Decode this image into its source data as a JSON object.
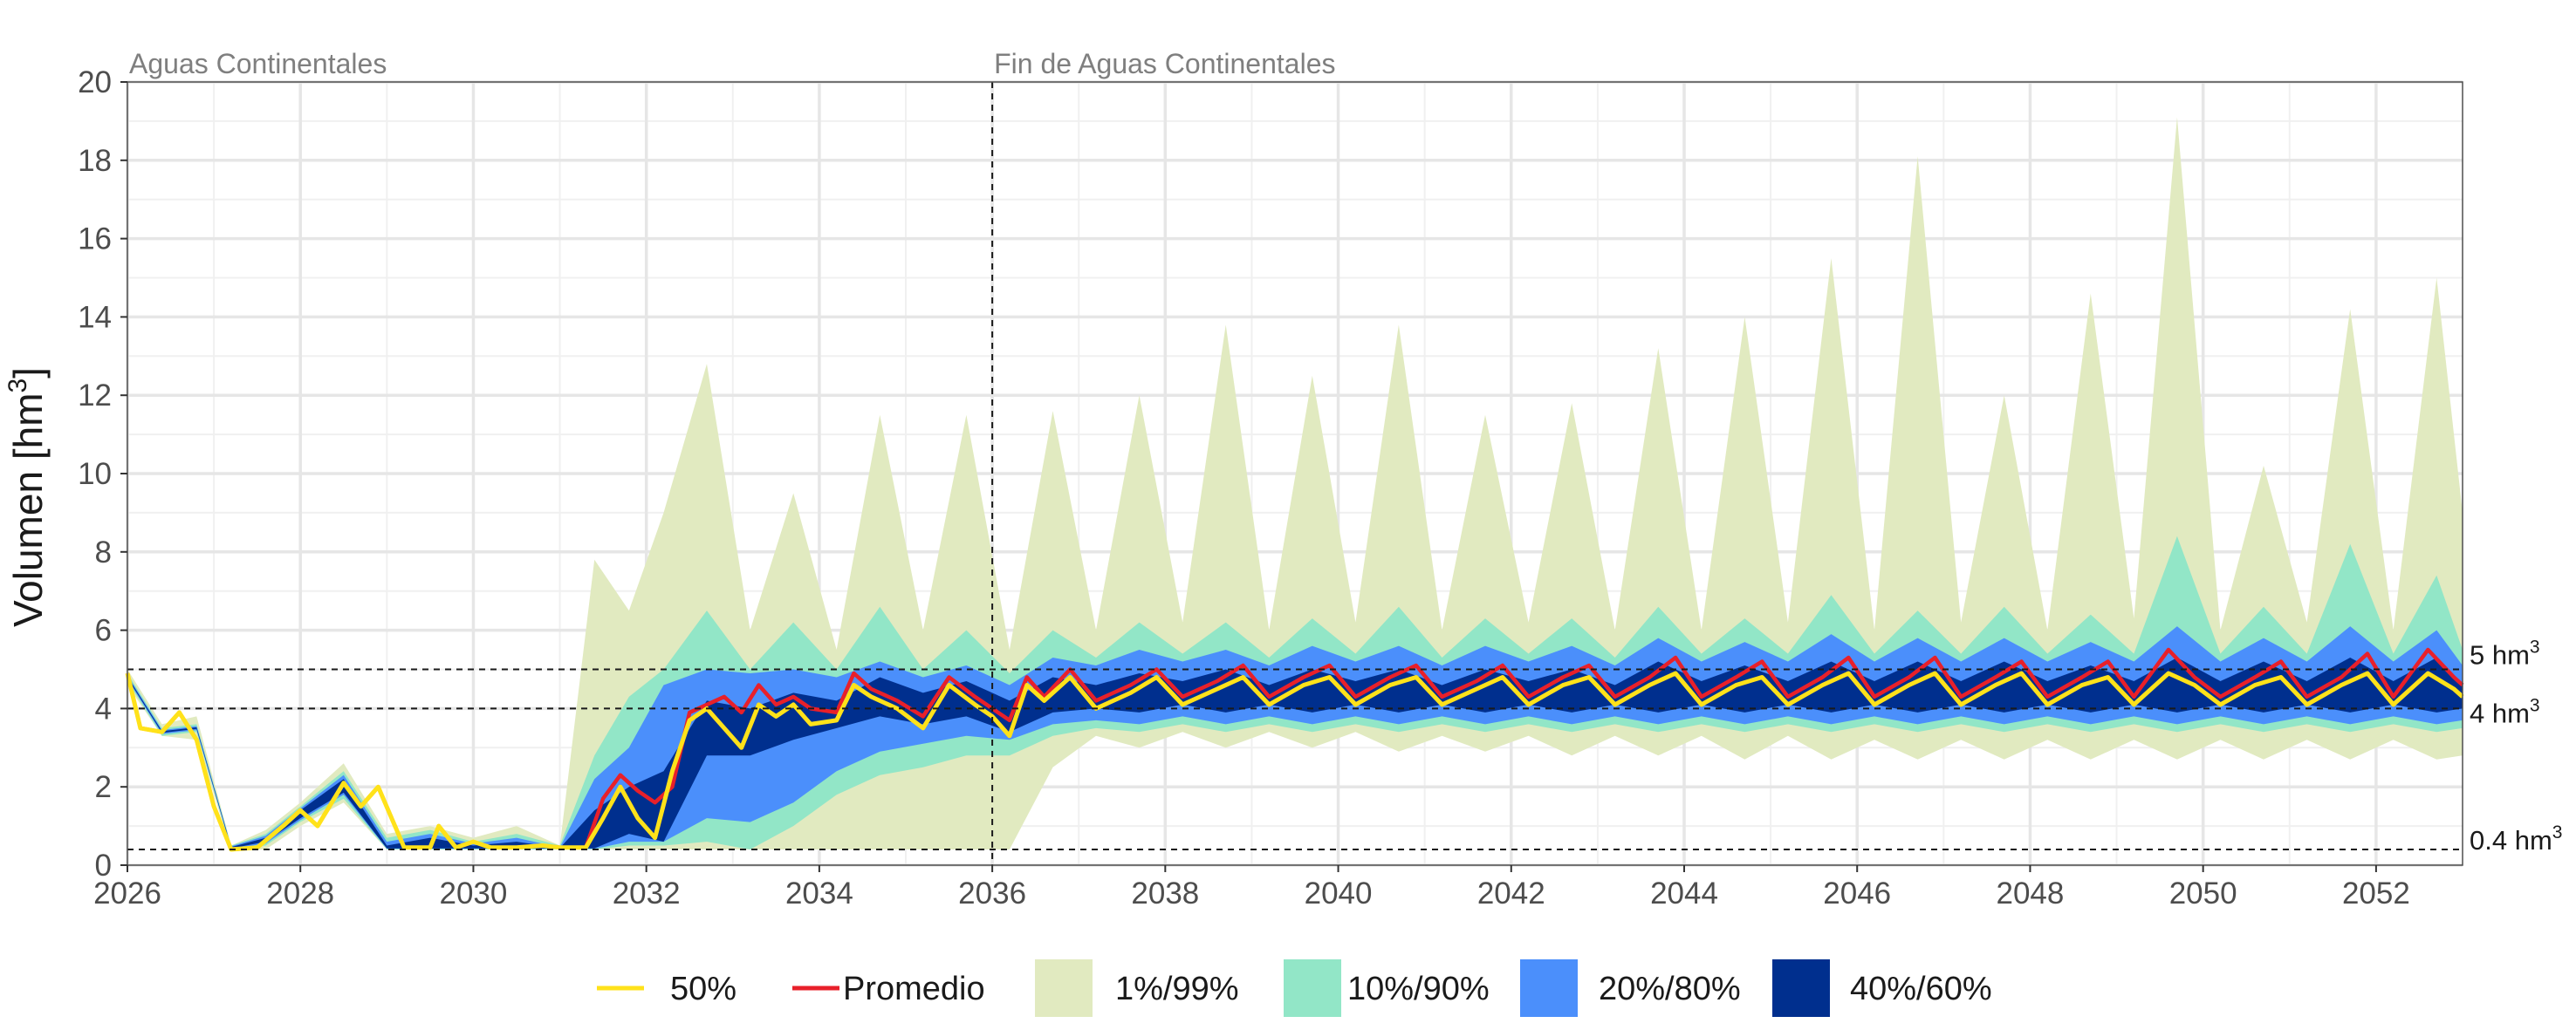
{
  "chart_data": {
    "type": "area",
    "ylabel": "Volumen [hm",
    "ylabel_sup": "3",
    "ylabel_end": "]",
    "xlim": [
      2026,
      2053
    ],
    "ylim": [
      0,
      20
    ],
    "x_ticks": [
      2026,
      2028,
      2030,
      2032,
      2034,
      2036,
      2038,
      2040,
      2042,
      2044,
      2046,
      2048,
      2050,
      2052
    ],
    "y_ticks": [
      0,
      2,
      4,
      6,
      8,
      10,
      12,
      14,
      16,
      18,
      20
    ],
    "grid": true,
    "legend_position": "bottom",
    "annotations": [
      {
        "x": 2026,
        "text": "Aguas Continentales"
      },
      {
        "x": 2036,
        "text": "Fin de Aguas Continentales"
      }
    ],
    "vlines": [
      2036
    ],
    "hlines": [
      {
        "y": 5,
        "label": "5 hm",
        "sup": "3"
      },
      {
        "y": 4,
        "label": "4 hm",
        "sup": "3"
      },
      {
        "y": 0.4,
        "label": "0.4 hm",
        "sup": "3"
      }
    ],
    "legend": [
      {
        "type": "line",
        "name": "50%",
        "color": "#ffe21a"
      },
      {
        "type": "line",
        "name": "Promedio",
        "color": "#e8202a"
      },
      {
        "type": "band",
        "name": "1%/99%",
        "color": "#e1eac0"
      },
      {
        "type": "band",
        "name": "10%/90%",
        "color": "#92e6c7"
      },
      {
        "type": "band",
        "name": "20%/80%",
        "color": "#4b8ffb"
      },
      {
        "type": "band",
        "name": "40%/60%",
        "color": "#002f8e"
      }
    ],
    "series": [
      {
        "name": "1%/99%",
        "kind": "band",
        "x": [
          2026.0,
          2026.4,
          2026.8,
          2027.2,
          2027.6,
          2028.0,
          2028.5,
          2029.0,
          2029.5,
          2030.0,
          2030.5,
          2031.0,
          2031.4,
          2031.8,
          2032.2,
          2032.7,
          2033.2,
          2033.7,
          2034.2,
          2034.7,
          2035.2,
          2035.7,
          2036.2,
          2036.7,
          2037.2,
          2037.7,
          2038.2,
          2038.7,
          2039.2,
          2039.7,
          2040.2,
          2040.7,
          2041.2,
          2041.7,
          2042.2,
          2042.7,
          2043.2,
          2043.7,
          2044.2,
          2044.7,
          2045.2,
          2045.7,
          2046.2,
          2046.7,
          2047.2,
          2047.7,
          2048.2,
          2048.7,
          2049.2,
          2049.7,
          2050.2,
          2050.7,
          2051.2,
          2051.7,
          2052.2,
          2052.7,
          2053.0
        ],
        "low": [
          4.6,
          3.3,
          3.2,
          0.4,
          0.4,
          1.0,
          1.6,
          0.4,
          0.4,
          0.4,
          0.4,
          0.4,
          0.4,
          0.4,
          0.4,
          0.4,
          0.4,
          0.4,
          0.4,
          0.4,
          0.4,
          0.4,
          0.4,
          2.5,
          3.3,
          3.0,
          3.4,
          3.0,
          3.4,
          3.0,
          3.4,
          2.9,
          3.3,
          2.9,
          3.3,
          2.8,
          3.3,
          2.8,
          3.3,
          2.7,
          3.3,
          2.7,
          3.2,
          2.7,
          3.2,
          2.7,
          3.2,
          2.7,
          3.2,
          2.7,
          3.2,
          2.7,
          3.2,
          2.7,
          3.2,
          2.7,
          2.8
        ],
        "high": [
          5.0,
          3.6,
          3.8,
          0.5,
          0.9,
          1.6,
          2.6,
          0.8,
          1.0,
          0.7,
          1.0,
          0.5,
          7.8,
          6.5,
          9.0,
          12.8,
          6.0,
          9.5,
          5.5,
          11.5,
          6.0,
          11.5,
          5.5,
          11.6,
          6.0,
          12.0,
          6.2,
          13.8,
          6.0,
          12.5,
          6.2,
          13.8,
          6.0,
          11.5,
          6.2,
          11.8,
          6.0,
          13.2,
          6.0,
          14.0,
          6.2,
          15.5,
          6.0,
          18.1,
          6.2,
          12.0,
          6.0,
          14.6,
          6.3,
          19.1,
          6.0,
          10.2,
          6.2,
          14.2,
          6.0,
          15.0,
          9.0
        ]
      },
      {
        "name": "10%/90%",
        "kind": "band",
        "x": [
          2026.0,
          2026.4,
          2026.8,
          2027.2,
          2027.6,
          2028.0,
          2028.5,
          2029.0,
          2029.5,
          2030.0,
          2030.5,
          2031.0,
          2031.4,
          2031.8,
          2032.2,
          2032.7,
          2033.2,
          2033.7,
          2034.2,
          2034.7,
          2035.2,
          2035.7,
          2036.2,
          2036.7,
          2037.2,
          2037.7,
          2038.2,
          2038.7,
          2039.2,
          2039.7,
          2040.2,
          2040.7,
          2041.2,
          2041.7,
          2042.2,
          2042.7,
          2043.2,
          2043.7,
          2044.2,
          2044.7,
          2045.2,
          2045.7,
          2046.2,
          2046.7,
          2047.2,
          2047.7,
          2048.2,
          2048.7,
          2049.2,
          2049.7,
          2050.2,
          2050.7,
          2051.2,
          2051.7,
          2052.2,
          2052.7,
          2053.0
        ],
        "low": [
          4.7,
          3.3,
          3.4,
          0.4,
          0.5,
          1.1,
          1.7,
          0.4,
          0.4,
          0.4,
          0.4,
          0.4,
          0.4,
          0.5,
          0.5,
          0.6,
          0.4,
          1.0,
          1.8,
          2.3,
          2.5,
          2.8,
          2.8,
          3.3,
          3.5,
          3.4,
          3.6,
          3.4,
          3.6,
          3.4,
          3.6,
          3.4,
          3.6,
          3.4,
          3.6,
          3.4,
          3.6,
          3.4,
          3.6,
          3.4,
          3.6,
          3.4,
          3.6,
          3.4,
          3.6,
          3.4,
          3.6,
          3.4,
          3.6,
          3.4,
          3.6,
          3.4,
          3.6,
          3.4,
          3.6,
          3.4,
          3.5
        ],
        "high": [
          4.9,
          3.5,
          3.6,
          0.5,
          0.8,
          1.5,
          2.4,
          0.7,
          0.9,
          0.6,
          0.8,
          0.5,
          2.8,
          4.3,
          5.0,
          6.5,
          5.0,
          6.2,
          5.0,
          6.6,
          5.0,
          6.0,
          4.9,
          6.0,
          5.3,
          6.2,
          5.4,
          6.2,
          5.3,
          6.3,
          5.4,
          6.6,
          5.3,
          6.3,
          5.4,
          6.3,
          5.3,
          6.6,
          5.4,
          6.3,
          5.4,
          6.9,
          5.4,
          6.5,
          5.4,
          6.6,
          5.4,
          6.4,
          5.4,
          8.4,
          5.4,
          6.6,
          5.4,
          8.2,
          5.4,
          7.4,
          5.5
        ]
      },
      {
        "name": "20%/80%",
        "kind": "band",
        "x": [
          2026.0,
          2026.4,
          2026.8,
          2027.2,
          2027.6,
          2028.0,
          2028.5,
          2029.0,
          2029.5,
          2030.0,
          2030.5,
          2031.0,
          2031.4,
          2031.8,
          2032.2,
          2032.7,
          2033.2,
          2033.7,
          2034.2,
          2034.7,
          2035.2,
          2035.7,
          2036.2,
          2036.7,
          2037.2,
          2037.7,
          2038.2,
          2038.7,
          2039.2,
          2039.7,
          2040.2,
          2040.7,
          2041.2,
          2041.7,
          2042.2,
          2042.7,
          2043.2,
          2043.7,
          2044.2,
          2044.7,
          2045.2,
          2045.7,
          2046.2,
          2046.7,
          2047.2,
          2047.7,
          2048.2,
          2048.7,
          2049.2,
          2049.7,
          2050.2,
          2050.7,
          2051.2,
          2051.7,
          2052.2,
          2052.7,
          2053.0
        ],
        "low": [
          4.75,
          3.35,
          3.45,
          0.42,
          0.55,
          1.15,
          1.8,
          0.42,
          0.42,
          0.42,
          0.42,
          0.42,
          0.42,
          0.6,
          0.6,
          1.2,
          1.1,
          1.6,
          2.4,
          2.9,
          3.1,
          3.3,
          3.2,
          3.6,
          3.7,
          3.6,
          3.8,
          3.6,
          3.8,
          3.6,
          3.8,
          3.6,
          3.8,
          3.6,
          3.8,
          3.6,
          3.8,
          3.6,
          3.8,
          3.6,
          3.8,
          3.6,
          3.8,
          3.6,
          3.8,
          3.6,
          3.8,
          3.6,
          3.8,
          3.6,
          3.8,
          3.6,
          3.8,
          3.6,
          3.8,
          3.6,
          3.7
        ],
        "high": [
          4.85,
          3.45,
          3.55,
          0.48,
          0.75,
          1.45,
          2.3,
          0.6,
          0.8,
          0.55,
          0.7,
          0.45,
          2.2,
          3.0,
          4.6,
          5.0,
          4.9,
          5.0,
          4.8,
          5.2,
          4.8,
          5.1,
          4.6,
          5.3,
          5.1,
          5.5,
          5.2,
          5.5,
          5.1,
          5.6,
          5.2,
          5.6,
          5.1,
          5.6,
          5.2,
          5.6,
          5.1,
          5.8,
          5.2,
          5.7,
          5.2,
          5.9,
          5.2,
          5.8,
          5.2,
          5.8,
          5.2,
          5.7,
          5.2,
          6.1,
          5.2,
          5.8,
          5.2,
          6.1,
          5.2,
          6.0,
          5.1
        ]
      },
      {
        "name": "40%/60%",
        "kind": "band",
        "x": [
          2026.0,
          2026.4,
          2026.8,
          2027.2,
          2027.6,
          2028.0,
          2028.5,
          2029.0,
          2029.5,
          2030.0,
          2030.5,
          2031.0,
          2031.4,
          2031.8,
          2032.2,
          2032.7,
          2033.2,
          2033.7,
          2034.2,
          2034.7,
          2035.2,
          2035.7,
          2036.2,
          2036.7,
          2037.2,
          2037.7,
          2038.2,
          2038.7,
          2039.2,
          2039.7,
          2040.2,
          2040.7,
          2041.2,
          2041.7,
          2042.2,
          2042.7,
          2043.2,
          2043.7,
          2044.2,
          2044.7,
          2045.2,
          2045.7,
          2046.2,
          2046.7,
          2047.2,
          2047.7,
          2048.2,
          2048.7,
          2049.2,
          2049.7,
          2050.2,
          2050.7,
          2051.2,
          2051.7,
          2052.2,
          2052.7,
          2053.0
        ],
        "low": [
          4.78,
          3.38,
          3.48,
          0.43,
          0.6,
          1.2,
          1.85,
          0.43,
          0.43,
          0.43,
          0.43,
          0.43,
          0.43,
          0.8,
          0.6,
          2.8,
          2.8,
          3.2,
          3.5,
          3.8,
          3.6,
          3.8,
          3.4,
          3.9,
          4.0,
          3.9,
          4.1,
          3.9,
          4.1,
          3.9,
          4.1,
          3.9,
          4.1,
          3.9,
          4.1,
          3.9,
          4.1,
          3.9,
          4.1,
          3.9,
          4.1,
          3.9,
          4.1,
          3.9,
          4.1,
          3.9,
          4.1,
          3.9,
          4.1,
          3.9,
          4.1,
          3.9,
          4.1,
          3.9,
          4.1,
          3.9,
          4.0
        ],
        "high": [
          4.82,
          3.42,
          3.52,
          0.46,
          0.7,
          1.4,
          2.2,
          0.5,
          0.7,
          0.5,
          0.6,
          0.44,
          1.4,
          2.0,
          2.4,
          4.2,
          4.0,
          4.4,
          4.2,
          4.8,
          4.4,
          4.7,
          4.2,
          4.8,
          4.6,
          4.9,
          4.7,
          5.0,
          4.6,
          5.0,
          4.7,
          5.0,
          4.6,
          5.0,
          4.7,
          5.0,
          4.6,
          5.2,
          4.7,
          5.1,
          4.7,
          5.2,
          4.7,
          5.2,
          4.7,
          5.2,
          4.7,
          5.1,
          4.7,
          5.3,
          4.7,
          5.2,
          4.7,
          5.3,
          4.7,
          5.3,
          4.6
        ]
      },
      {
        "name": "Promedio",
        "kind": "line",
        "x": [
          2026.0,
          2026.15,
          2026.4,
          2026.6,
          2026.8,
          2027.0,
          2027.2,
          2027.5,
          2027.8,
          2028.0,
          2028.2,
          2028.5,
          2028.7,
          2028.9,
          2029.2,
          2029.5,
          2029.6,
          2029.8,
          2030.0,
          2030.2,
          2030.5,
          2030.8,
          2031.0,
          2031.3,
          2031.5,
          2031.7,
          2031.9,
          2032.1,
          2032.3,
          2032.5,
          2032.7,
          2032.9,
          2033.1,
          2033.3,
          2033.5,
          2033.7,
          2033.9,
          2034.2,
          2034.4,
          2034.6,
          2034.9,
          2035.2,
          2035.5,
          2035.8,
          2036.0,
          2036.2,
          2036.4,
          2036.6,
          2036.9,
          2037.2,
          2037.6,
          2037.9,
          2038.2,
          2038.6,
          2038.9,
          2039.2,
          2039.6,
          2039.9,
          2040.2,
          2040.6,
          2040.9,
          2041.2,
          2041.6,
          2041.9,
          2042.2,
          2042.6,
          2042.9,
          2043.2,
          2043.6,
          2043.9,
          2044.2,
          2044.6,
          2044.9,
          2045.2,
          2045.6,
          2045.9,
          2046.2,
          2046.6,
          2046.9,
          2047.2,
          2047.6,
          2047.9,
          2048.2,
          2048.6,
          2048.9,
          2049.2,
          2049.6,
          2049.9,
          2050.2,
          2050.6,
          2050.9,
          2051.2,
          2051.6,
          2051.9,
          2052.2,
          2052.6,
          2052.9,
          2053.0
        ],
        "y": [
          4.9,
          3.5,
          3.4,
          3.9,
          3.2,
          1.5,
          0.4,
          0.45,
          1.0,
          1.4,
          1.0,
          2.1,
          1.5,
          2.0,
          0.45,
          0.45,
          1.0,
          0.45,
          0.6,
          0.45,
          0.45,
          0.5,
          0.45,
          0.45,
          1.7,
          2.3,
          1.9,
          1.6,
          2.0,
          3.9,
          4.1,
          4.3,
          3.9,
          4.6,
          4.1,
          4.3,
          4.0,
          3.9,
          4.9,
          4.5,
          4.2,
          3.8,
          4.8,
          4.3,
          4.0,
          3.7,
          4.8,
          4.3,
          5.0,
          4.2,
          4.6,
          5.0,
          4.3,
          4.7,
          5.1,
          4.3,
          4.8,
          5.1,
          4.3,
          4.8,
          5.1,
          4.3,
          4.7,
          5.1,
          4.3,
          4.8,
          5.1,
          4.3,
          4.8,
          5.3,
          4.3,
          4.8,
          5.2,
          4.3,
          4.8,
          5.3,
          4.3,
          4.8,
          5.3,
          4.3,
          4.8,
          5.2,
          4.3,
          4.8,
          5.2,
          4.3,
          5.5,
          4.8,
          4.3,
          4.8,
          5.2,
          4.3,
          4.8,
          5.4,
          4.3,
          5.5,
          4.8,
          4.6
        ]
      },
      {
        "name": "50%",
        "kind": "line",
        "x": [
          2026.0,
          2026.15,
          2026.4,
          2026.6,
          2026.8,
          2027.0,
          2027.2,
          2027.5,
          2027.8,
          2028.0,
          2028.2,
          2028.5,
          2028.7,
          2028.9,
          2029.2,
          2029.5,
          2029.6,
          2029.8,
          2030.0,
          2030.2,
          2030.5,
          2030.8,
          2031.0,
          2031.3,
          2031.5,
          2031.7,
          2031.9,
          2032.1,
          2032.3,
          2032.5,
          2032.7,
          2032.9,
          2033.1,
          2033.3,
          2033.5,
          2033.7,
          2033.9,
          2034.2,
          2034.4,
          2034.6,
          2034.9,
          2035.2,
          2035.5,
          2035.8,
          2036.0,
          2036.2,
          2036.4,
          2036.6,
          2036.9,
          2037.2,
          2037.6,
          2037.9,
          2038.2,
          2038.6,
          2038.9,
          2039.2,
          2039.6,
          2039.9,
          2040.2,
          2040.6,
          2040.9,
          2041.2,
          2041.6,
          2041.9,
          2042.2,
          2042.6,
          2042.9,
          2043.2,
          2043.6,
          2043.9,
          2044.2,
          2044.6,
          2044.9,
          2045.2,
          2045.6,
          2045.9,
          2046.2,
          2046.6,
          2046.9,
          2047.2,
          2047.6,
          2047.9,
          2048.2,
          2048.6,
          2048.9,
          2049.2,
          2049.6,
          2049.9,
          2050.2,
          2050.6,
          2050.9,
          2051.2,
          2051.6,
          2051.9,
          2052.2,
          2052.6,
          2052.9,
          2053.0
        ],
        "y": [
          4.9,
          3.5,
          3.4,
          3.9,
          3.2,
          1.5,
          0.4,
          0.45,
          1.0,
          1.4,
          1.0,
          2.1,
          1.5,
          2.0,
          0.45,
          0.45,
          1.0,
          0.45,
          0.6,
          0.45,
          0.45,
          0.5,
          0.45,
          0.45,
          1.2,
          2.0,
          1.2,
          0.7,
          2.4,
          3.7,
          4.0,
          3.5,
          3.0,
          4.1,
          3.8,
          4.1,
          3.6,
          3.7,
          4.6,
          4.3,
          4.0,
          3.5,
          4.6,
          4.1,
          3.8,
          3.3,
          4.6,
          4.2,
          4.8,
          4.0,
          4.4,
          4.8,
          4.1,
          4.5,
          4.8,
          4.1,
          4.6,
          4.8,
          4.1,
          4.6,
          4.8,
          4.1,
          4.5,
          4.8,
          4.1,
          4.6,
          4.8,
          4.1,
          4.6,
          4.9,
          4.1,
          4.6,
          4.8,
          4.1,
          4.6,
          4.9,
          4.1,
          4.6,
          4.9,
          4.1,
          4.6,
          4.9,
          4.1,
          4.6,
          4.8,
          4.1,
          4.9,
          4.6,
          4.1,
          4.6,
          4.8,
          4.1,
          4.6,
          4.9,
          4.1,
          4.9,
          4.5,
          4.3
        ]
      }
    ]
  }
}
